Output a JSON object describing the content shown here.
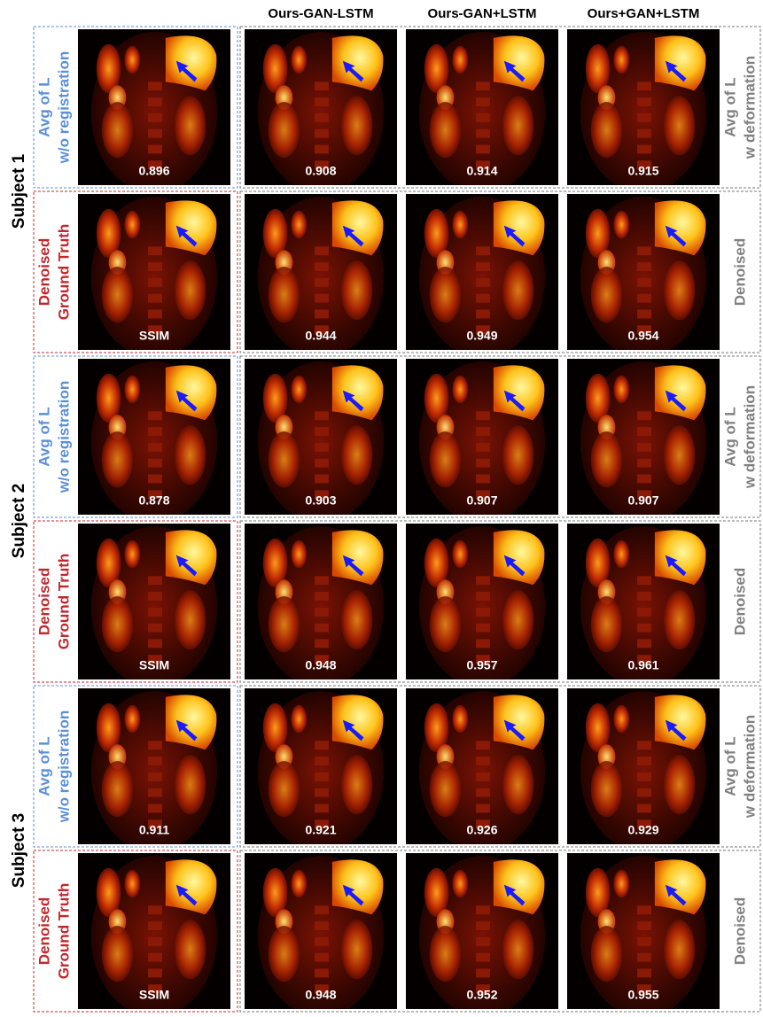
{
  "columns": [
    "Ours-GAN-LSTM",
    "Ours-GAN+LSTM",
    "Ours+GAN+LSTM"
  ],
  "subjects": [
    {
      "label": "Subject 1",
      "rows": [
        {
          "left": [
            "Avg of L",
            "w/o registration"
          ],
          "right": [
            "Avg of L",
            "w deformation"
          ],
          "values": [
            0.896,
            0.908,
            0.914,
            0.915
          ]
        },
        {
          "left": [
            "Denoised",
            "Ground Truth"
          ],
          "right": [
            "Denoised"
          ],
          "values": [
            "SSIM",
            0.944,
            0.949,
            0.954
          ]
        }
      ]
    },
    {
      "label": "Subject 2",
      "rows": [
        {
          "left": [
            "Avg of L",
            "w/o registration"
          ],
          "right": [
            "Avg of L",
            "w deformation"
          ],
          "values": [
            0.878,
            0.903,
            0.907,
            0.907
          ]
        },
        {
          "left": [
            "Denoised",
            "Ground Truth"
          ],
          "right": [
            "Denoised"
          ],
          "values": [
            "SSIM",
            0.948,
            0.957,
            0.961
          ]
        }
      ]
    },
    {
      "label": "Subject 3",
      "rows": [
        {
          "left": [
            "Avg of L",
            "w/o registration"
          ],
          "right": [
            "Avg of L",
            "w deformation"
          ],
          "values": [
            0.911,
            0.921,
            0.926,
            0.929
          ]
        },
        {
          "left": [
            "Denoised",
            "Ground Truth"
          ],
          "right": [
            "Denoised"
          ],
          "values": [
            "SSIM",
            0.948,
            0.952,
            0.955
          ]
        }
      ]
    }
  ]
}
